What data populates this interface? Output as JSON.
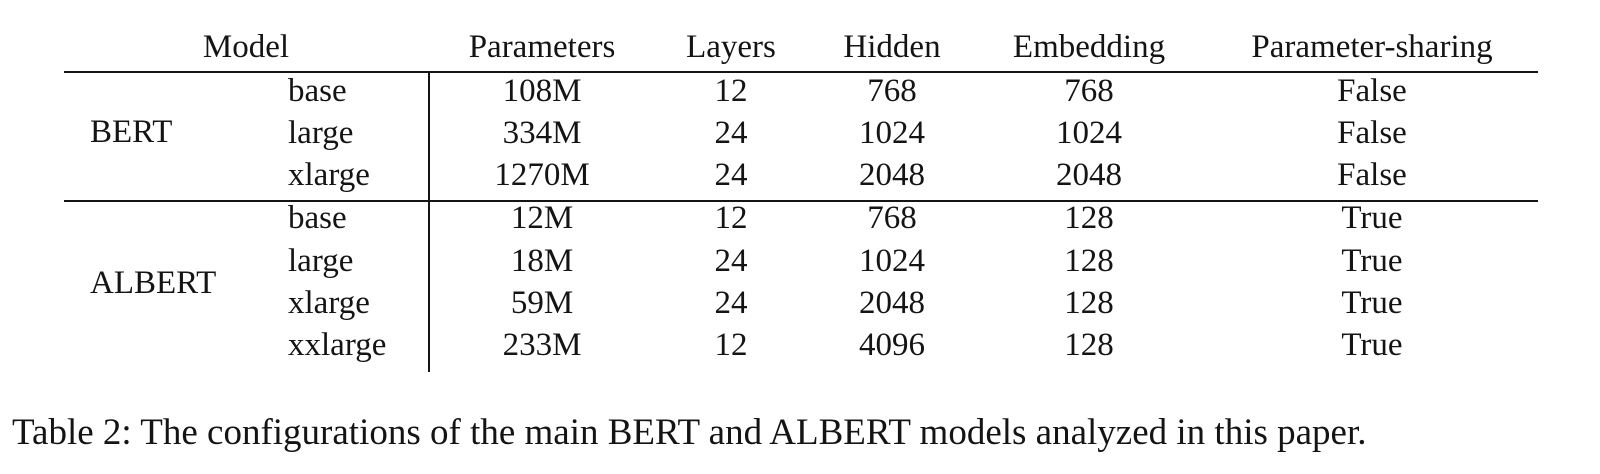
{
  "table": {
    "headers": {
      "model": "Model",
      "parameters": "Parameters",
      "layers": "Layers",
      "hidden": "Hidden",
      "embedding": "Embedding",
      "sharing": "Parameter-sharing"
    },
    "groups": [
      {
        "name": "BERT",
        "rows": [
          {
            "size": "base",
            "parameters": "108M",
            "layers": "12",
            "hidden": "768",
            "embedding": "768",
            "sharing": "False"
          },
          {
            "size": "large",
            "parameters": "334M",
            "layers": "24",
            "hidden": "1024",
            "embedding": "1024",
            "sharing": "False"
          },
          {
            "size": "xlarge",
            "parameters": "1270M",
            "layers": "24",
            "hidden": "2048",
            "embedding": "2048",
            "sharing": "False"
          }
        ]
      },
      {
        "name": "ALBERT",
        "rows": [
          {
            "size": "base",
            "parameters": "12M",
            "layers": "12",
            "hidden": "768",
            "embedding": "128",
            "sharing": "True"
          },
          {
            "size": "large",
            "parameters": "18M",
            "layers": "24",
            "hidden": "1024",
            "embedding": "128",
            "sharing": "True"
          },
          {
            "size": "xlarge",
            "parameters": "59M",
            "layers": "24",
            "hidden": "2048",
            "embedding": "128",
            "sharing": "True"
          },
          {
            "size": "xxlarge",
            "parameters": "233M",
            "layers": "12",
            "hidden": "4096",
            "embedding": "128",
            "sharing": "True"
          }
        ]
      }
    ]
  },
  "caption": "Table 2: The configurations of the main BERT and ALBERT models analyzed in this paper."
}
